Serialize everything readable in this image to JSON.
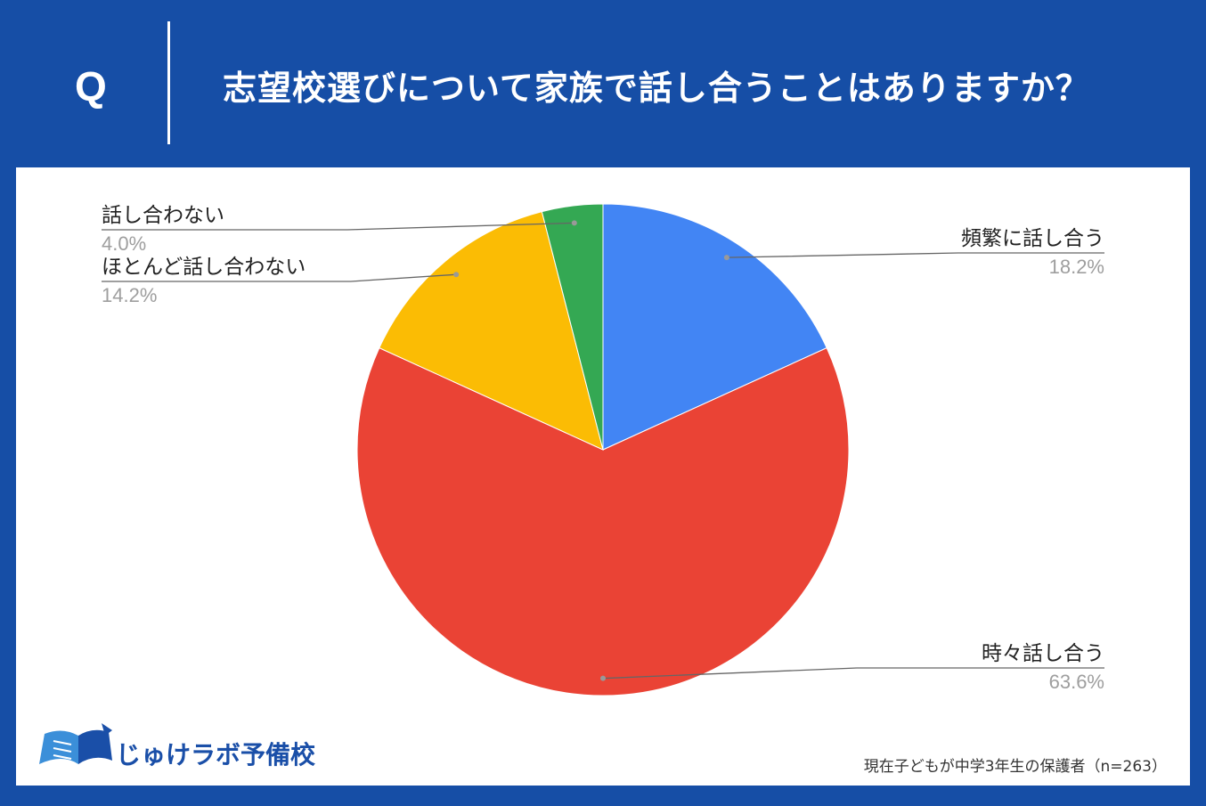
{
  "header": {
    "q_mark": "Q",
    "question": "志望校選びについて家族で話し合うことはありますか？"
  },
  "chart_data": {
    "type": "pie",
    "slices": [
      {
        "label": "頻繁に話し合う",
        "value": 18.2,
        "value_label": "18.2%",
        "color": "#4285f4"
      },
      {
        "label": "時々話し合う",
        "value": 63.6,
        "value_label": "63.6%",
        "color": "#ea4335"
      },
      {
        "label": "ほとんど話し合わない",
        "value": 14.2,
        "value_label": "14.2%",
        "color": "#fbbc04"
      },
      {
        "label": "話し合わない",
        "value": 4.0,
        "value_label": "4.0%",
        "color": "#34a853"
      }
    ],
    "start_angle": "top",
    "direction": "clockwise"
  },
  "logo": {
    "text": "じゅけラボ予備校"
  },
  "footnote": "現在子どもが中学3年生の保護者（n=263）"
}
